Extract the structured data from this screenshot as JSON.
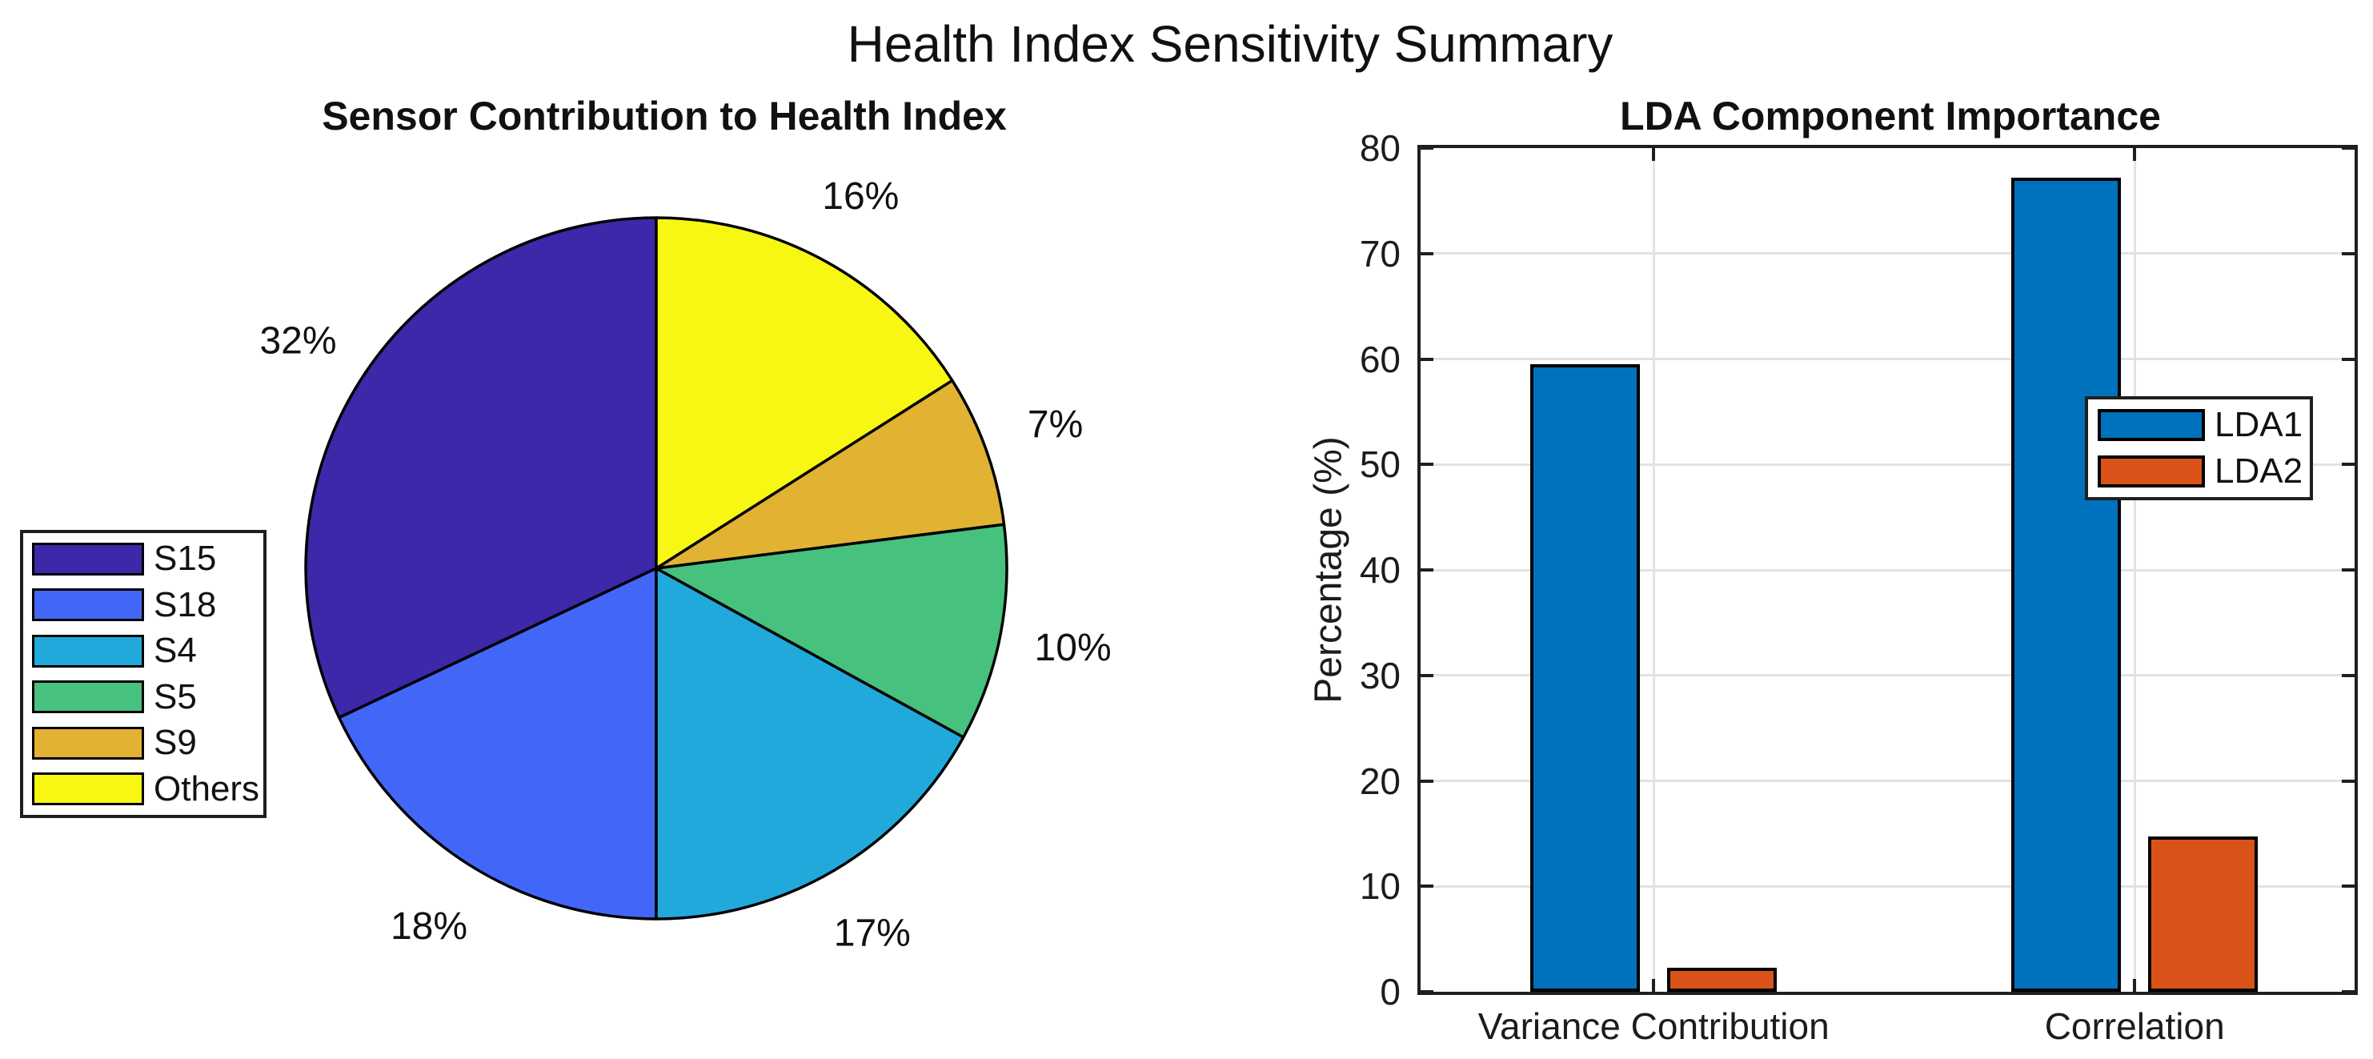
{
  "figure": {
    "title": "Health Index Sensitivity Summary",
    "background_color": "#ffffff"
  },
  "chart_data": [
    {
      "type": "pie",
      "title": "Sensor Contribution to Health Index",
      "labels": [
        "S15",
        "S18",
        "S4",
        "S5",
        "S9",
        "Others"
      ],
      "values": [
        32,
        18,
        17,
        10,
        7,
        16
      ],
      "value_labels": [
        "32%",
        "18%",
        "17%",
        "10%",
        "7%",
        "16%"
      ],
      "colors": [
        "#3C28A8",
        "#4267F8",
        "#21A9DC",
        "#46C17E",
        "#E2B233",
        "#F8F714"
      ],
      "start_angle_deg": 90,
      "direction": "counterclockwise",
      "slice_edge_color": "#000000",
      "legend_position": "middle-left"
    },
    {
      "type": "bar",
      "title": "LDA Component Importance",
      "categories": [
        "Variance Contribution",
        "Correlation"
      ],
      "series": [
        {
          "name": "LDA1",
          "color": "#0072BD",
          "values": [
            59.5,
            77.2
          ]
        },
        {
          "name": "LDA2",
          "color": "#D95319",
          "values": [
            2.3,
            14.7
          ]
        }
      ],
      "ylabel": "Percentage (%)",
      "ylim": [
        0,
        80
      ],
      "yticks": [
        0,
        10,
        20,
        30,
        40,
        50,
        60,
        70,
        80
      ],
      "grid": true,
      "bar_edge_color": "#000000",
      "legend_position": "upper-right-inside"
    }
  ]
}
